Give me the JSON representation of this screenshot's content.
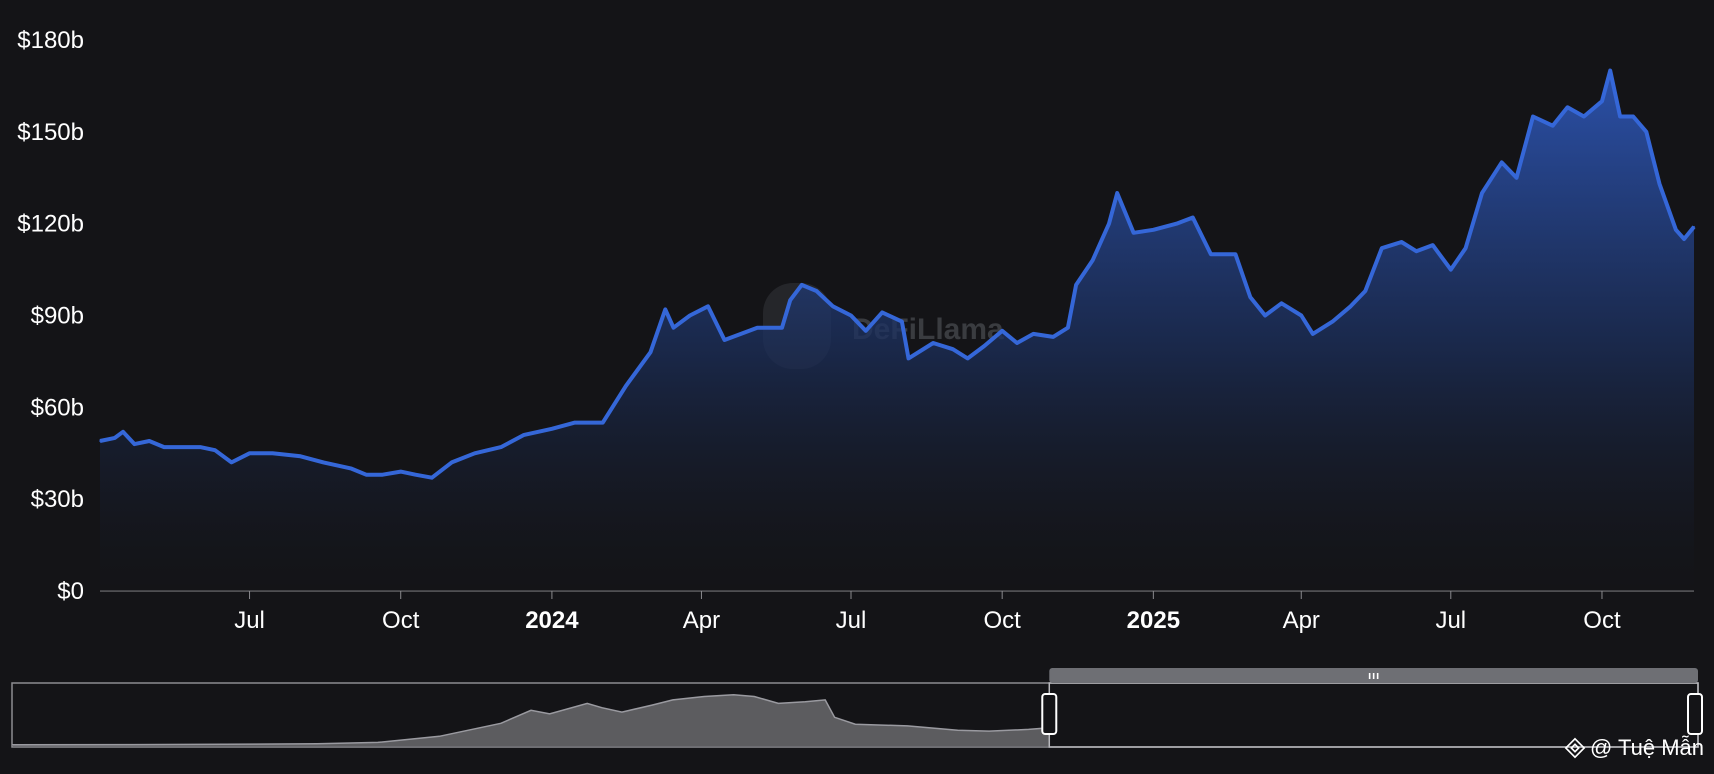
{
  "chart_data": {
    "type": "area",
    "title": "",
    "xlabel": "",
    "ylabel": "",
    "ylim": [
      0,
      180
    ],
    "y_ticks": [
      "$0",
      "$30b",
      "$60b",
      "$90b",
      "$120b",
      "$150b",
      "$180b"
    ],
    "y_tick_values": [
      0,
      30,
      60,
      90,
      120,
      150,
      180
    ],
    "x_ticks": [
      {
        "label": "Jul",
        "date": "2023-07-01",
        "bold": false
      },
      {
        "label": "Oct",
        "date": "2023-10-01",
        "bold": false
      },
      {
        "label": "2024",
        "date": "2024-01-01",
        "bold": true
      },
      {
        "label": "Apr",
        "date": "2024-04-01",
        "bold": false
      },
      {
        "label": "Jul",
        "date": "2024-07-01",
        "bold": false
      },
      {
        "label": "Oct",
        "date": "2024-10-01",
        "bold": false
      },
      {
        "label": "2025",
        "date": "2025-01-01",
        "bold": true
      },
      {
        "label": "Apr",
        "date": "2025-04-01",
        "bold": false
      },
      {
        "label": "Jul",
        "date": "2025-07-01",
        "bold": false
      },
      {
        "label": "Oct",
        "date": "2025-10-01",
        "bold": false
      }
    ],
    "x_range": [
      "2023-04-01",
      "2025-11-26"
    ],
    "grid": false,
    "legend": "none",
    "series": [
      {
        "color": "#3567d8",
        "unit": "$b",
        "points": [
          [
            "2023-04-01",
            49
          ],
          [
            "2023-04-10",
            50
          ],
          [
            "2023-04-15",
            52
          ],
          [
            "2023-04-22",
            48
          ],
          [
            "2023-05-01",
            49
          ],
          [
            "2023-05-10",
            47
          ],
          [
            "2023-05-20",
            47
          ],
          [
            "2023-06-01",
            47
          ],
          [
            "2023-06-10",
            46
          ],
          [
            "2023-06-20",
            42
          ],
          [
            "2023-07-01",
            45
          ],
          [
            "2023-07-15",
            45
          ],
          [
            "2023-08-01",
            44
          ],
          [
            "2023-08-15",
            42
          ],
          [
            "2023-09-01",
            40
          ],
          [
            "2023-09-10",
            38
          ],
          [
            "2023-09-20",
            38
          ],
          [
            "2023-10-01",
            39
          ],
          [
            "2023-10-10",
            38
          ],
          [
            "2023-10-20",
            37
          ],
          [
            "2023-11-01",
            42
          ],
          [
            "2023-11-15",
            45
          ],
          [
            "2023-12-01",
            47
          ],
          [
            "2023-12-15",
            51
          ],
          [
            "2024-01-01",
            53
          ],
          [
            "2024-01-15",
            55
          ],
          [
            "2024-02-01",
            55
          ],
          [
            "2024-02-15",
            67
          ],
          [
            "2024-03-01",
            78
          ],
          [
            "2024-03-10",
            92
          ],
          [
            "2024-03-15",
            86
          ],
          [
            "2024-03-25",
            90
          ],
          [
            "2024-04-05",
            93
          ],
          [
            "2024-04-15",
            82
          ],
          [
            "2024-04-25",
            84
          ],
          [
            "2024-05-05",
            86
          ],
          [
            "2024-05-20",
            86
          ],
          [
            "2024-05-25",
            95
          ],
          [
            "2024-06-01",
            100
          ],
          [
            "2024-06-10",
            98
          ],
          [
            "2024-06-20",
            93
          ],
          [
            "2024-07-01",
            90
          ],
          [
            "2024-07-10",
            85
          ],
          [
            "2024-07-20",
            91
          ],
          [
            "2024-08-01",
            88
          ],
          [
            "2024-08-05",
            76
          ],
          [
            "2024-08-20",
            81
          ],
          [
            "2024-09-01",
            79
          ],
          [
            "2024-09-10",
            76
          ],
          [
            "2024-09-20",
            80
          ],
          [
            "2024-10-01",
            85
          ],
          [
            "2024-10-10",
            81
          ],
          [
            "2024-10-20",
            84
          ],
          [
            "2024-11-01",
            83
          ],
          [
            "2024-11-10",
            86
          ],
          [
            "2024-11-15",
            100
          ],
          [
            "2024-11-25",
            108
          ],
          [
            "2024-12-05",
            120
          ],
          [
            "2024-12-10",
            130
          ],
          [
            "2024-12-20",
            117
          ],
          [
            "2025-01-01",
            118
          ],
          [
            "2025-01-15",
            120
          ],
          [
            "2025-01-25",
            122
          ],
          [
            "2025-02-05",
            110
          ],
          [
            "2025-02-20",
            110
          ],
          [
            "2025-03-01",
            96
          ],
          [
            "2025-03-10",
            90
          ],
          [
            "2025-03-20",
            94
          ],
          [
            "2025-04-01",
            90
          ],
          [
            "2025-04-08",
            84
          ],
          [
            "2025-04-20",
            88
          ],
          [
            "2025-05-01",
            93
          ],
          [
            "2025-05-10",
            98
          ],
          [
            "2025-05-20",
            112
          ],
          [
            "2025-06-01",
            114
          ],
          [
            "2025-06-10",
            111
          ],
          [
            "2025-06-20",
            113
          ],
          [
            "2025-07-01",
            105
          ],
          [
            "2025-07-10",
            112
          ],
          [
            "2025-07-20",
            130
          ],
          [
            "2025-08-01",
            140
          ],
          [
            "2025-08-10",
            135
          ],
          [
            "2025-08-20",
            155
          ],
          [
            "2025-09-01",
            152
          ],
          [
            "2025-09-10",
            158
          ],
          [
            "2025-09-20",
            155
          ],
          [
            "2025-10-01",
            160
          ],
          [
            "2025-10-06",
            170
          ],
          [
            "2025-10-12",
            155
          ],
          [
            "2025-10-20",
            155
          ],
          [
            "2025-10-28",
            150
          ],
          [
            "2025-11-05",
            133
          ],
          [
            "2025-11-15",
            118
          ],
          [
            "2025-11-20",
            115
          ],
          [
            "2025-11-26",
            119
          ]
        ]
      }
    ],
    "overview": {
      "range": [
        "2019-01-01",
        "2025-11-26"
      ],
      "selected": [
        "2023-04-01",
        "2025-11-26"
      ],
      "points": [
        [
          "2019-01-01",
          0.3
        ],
        [
          "2019-07-01",
          0.5
        ],
        [
          "2020-01-01",
          1
        ],
        [
          "2020-04-01",
          1.5
        ],
        [
          "2020-07-01",
          3
        ],
        [
          "2020-10-01",
          10
        ],
        [
          "2021-01-01",
          25
        ],
        [
          "2021-02-15",
          40
        ],
        [
          "2021-03-15",
          36
        ],
        [
          "2021-05-10",
          48
        ],
        [
          "2021-06-01",
          43
        ],
        [
          "2021-07-01",
          38
        ],
        [
          "2021-08-15",
          46
        ],
        [
          "2021-09-15",
          52
        ],
        [
          "2021-11-01",
          56
        ],
        [
          "2021-12-15",
          58
        ],
        [
          "2022-01-15",
          56
        ],
        [
          "2022-02-20",
          48
        ],
        [
          "2022-04-01",
          50
        ],
        [
          "2022-05-01",
          52
        ],
        [
          "2022-05-15",
          32
        ],
        [
          "2022-06-15",
          24
        ],
        [
          "2022-09-01",
          22
        ],
        [
          "2022-11-15",
          17
        ],
        [
          "2023-01-01",
          16
        ],
        [
          "2023-03-01",
          18
        ],
        [
          "2023-04-01",
          20
        ]
      ]
    }
  },
  "watermark": {
    "text": "DeFiLlama"
  },
  "credit": {
    "text": "@ Tuệ Mẫn",
    "icon": "binance-diamond-icon"
  },
  "colors": {
    "line": "#3567d8",
    "background": "#141417",
    "overview_fill": "#5c5c5f"
  }
}
